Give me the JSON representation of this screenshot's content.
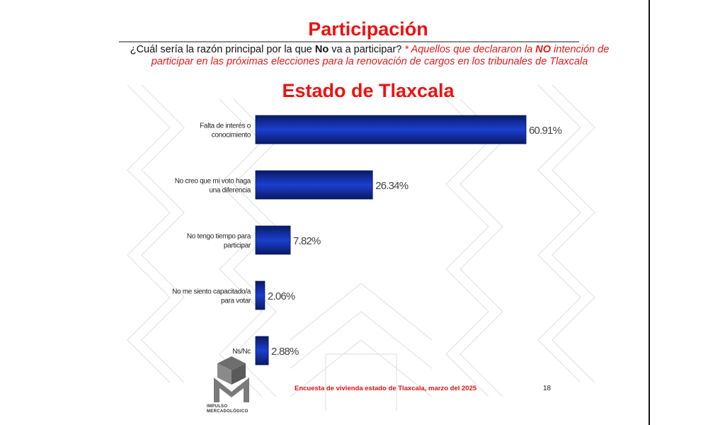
{
  "title": "Participación",
  "question": {
    "prefix": "¿Cuál sería la razón principal por la que ",
    "emphasis": "No",
    "suffix": " va a participar? ",
    "note_prefix": "* Aquellos que declararon la ",
    "note_emphasis": "NO",
    "note_suffix": " intención de participar en las próximas elecciones para la renovación de cargos en los tribunales de Tlaxcala"
  },
  "region": "Estado de Tlaxcala",
  "chart_data": {
    "type": "bar",
    "orientation": "horizontal",
    "categories": [
      [
        "Falta de interés o",
        "conocimiento"
      ],
      [
        "No creo que mi voto haga",
        "una diferencia"
      ],
      [
        "No tengo tiempo para",
        "participar"
      ],
      [
        "No me siento capacitado/a",
        "para votar"
      ],
      [
        "Ns/Nc"
      ]
    ],
    "values": [
      60.91,
      26.34,
      7.82,
      2.06,
      2.88
    ],
    "value_labels": [
      "60.91%",
      "26.34%",
      "7.82%",
      "2.06%",
      "2.88%"
    ],
    "xlim": [
      0,
      60.91
    ],
    "grid": false,
    "legend": "none",
    "bar_color": "#1133aa"
  },
  "footer": "Encuesta de vivienda estado de Tlaxcala, marzo   del 2025",
  "page_number": "18",
  "logo": {
    "line1": "IMPULSO",
    "line2": "MERCADOLÓGICO"
  }
}
